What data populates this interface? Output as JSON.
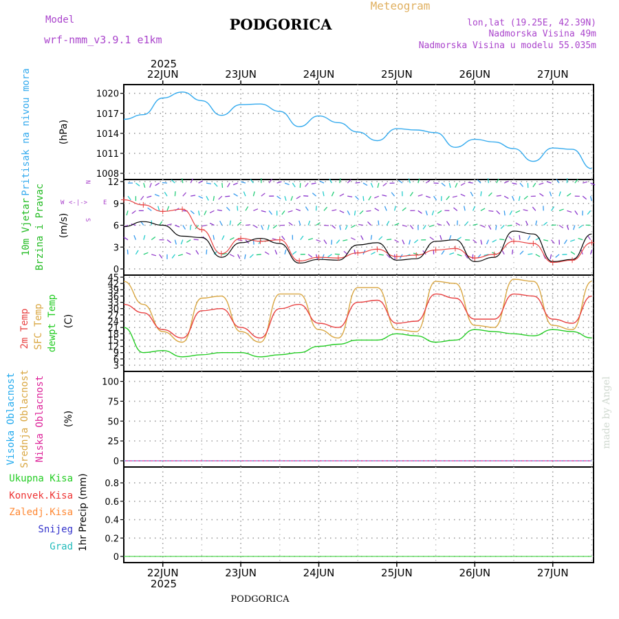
{
  "header": {
    "model_label": "Model",
    "model_name": "wrf-nmm_v3.9.1 e1km",
    "station": "PODGORICA",
    "product": "Meteogram",
    "lonlat": "lon,lat (19.25E, 42.39N)",
    "elevation": "Nadmorska Visina 49m",
    "model_elevation": "Nadmorska Visina u modelu 55.035m",
    "year": "2025",
    "credit": "made by Angel"
  },
  "colors": {
    "pressure": "#33aaee",
    "temp2m": "#e84040",
    "sfc_temp": "#d9a640",
    "dewpt": "#22cc22",
    "visoka": "#22aaee",
    "srednja": "#d9a640",
    "niska": "#dd2299",
    "wind_label": "#22bb22",
    "wind_speed": "#000000",
    "gust": "#e84040",
    "ukupna": "#22cc22",
    "konvek": "#ee3333",
    "zaledj": "#ff8833",
    "snijeg": "#3333cc",
    "grad": "#22bbbb",
    "grid": "#999999"
  },
  "x_axis": {
    "dates": [
      "22JUN",
      "23JUN",
      "24JUN",
      "25JUN",
      "26JUN",
      "27JUN"
    ],
    "bottom_year": "2025",
    "bottom_station": "PODGORICA"
  },
  "panels": {
    "pressure": {
      "title": "Pritisak na nivou mora",
      "unit": "(hPa)",
      "ticks": [
        "1020",
        "1017",
        "1014",
        "1011",
        "1008"
      ]
    },
    "wind": {
      "title1": "10m Vjetar",
      "title2": "Brzina i Pravac",
      "unit": "(m/s)",
      "ticks": [
        "12",
        "9",
        "6",
        "3",
        "0"
      ],
      "compass_w": "W",
      "compass_e": "E",
      "compass_arrow": "<-|->",
      "compass_n": "N",
      "compass_s": "S"
    },
    "temperature": {
      "title1": "2m Temp",
      "title2": "SFC Temp",
      "title3": "dewpt Temp",
      "unit": "(C)",
      "ticks": [
        "45",
        "42",
        "39",
        "36",
        "33",
        "30",
        "27",
        "24",
        "21",
        "18",
        "15",
        "12",
        "9",
        "6",
        "3"
      ]
    },
    "clouds": {
      "title1": "Visoka Oblacnost",
      "title2": "Srednja Oblacnost",
      "title3": "Niska Oblacnost",
      "unit": "(%)",
      "ticks": [
        "100",
        "75",
        "50",
        "25",
        "0"
      ]
    },
    "precip": {
      "unit": "1hr Precip (mm)",
      "ticks": [
        "0.8",
        "0.6",
        "0.4",
        "0.2",
        "0"
      ],
      "legend": [
        "Ukupna Kisa",
        "Konvek.Kisa",
        "Zaledj.Kisa",
        "Snijeg",
        "Grad"
      ]
    }
  },
  "chart_data": {
    "type": "line",
    "x": [
      "2025-06-21 12:00",
      "2025-06-21 18:00",
      "2025-06-22 00:00",
      "2025-06-22 06:00",
      "2025-06-22 12:00",
      "2025-06-22 18:00",
      "2025-06-23 00:00",
      "2025-06-23 06:00",
      "2025-06-23 12:00",
      "2025-06-23 18:00",
      "2025-06-24 00:00",
      "2025-06-24 06:00",
      "2025-06-24 12:00",
      "2025-06-24 18:00",
      "2025-06-25 00:00",
      "2025-06-25 06:00",
      "2025-06-25 12:00",
      "2025-06-25 18:00",
      "2025-06-26 00:00",
      "2025-06-26 06:00",
      "2025-06-26 12:00",
      "2025-06-26 18:00",
      "2025-06-27 00:00",
      "2025-06-27 06:00",
      "2025-06-27 12:00"
    ],
    "series": [
      {
        "key": "pressure",
        "unit": "hPa",
        "values": [
          1016.1,
          1016.8,
          1019.3,
          1020.2,
          1018.9,
          1016.7,
          1018.3,
          1018.4,
          1017.3,
          1015.0,
          1016.6,
          1015.6,
          1014.2,
          1012.9,
          1014.7,
          1014.5,
          1014.1,
          1011.9,
          1013.1,
          1012.7,
          1011.7,
          1009.8,
          1011.8,
          1011.6,
          1008.7
        ]
      },
      {
        "key": "temp2m",
        "unit": "C",
        "values": [
          32,
          28,
          20,
          16,
          29,
          30,
          21,
          16,
          30,
          32,
          23,
          21,
          33,
          34,
          23,
          24,
          37,
          35,
          25,
          25,
          37,
          36,
          25,
          23,
          36
        ]
      },
      {
        "key": "sfc_temp",
        "unit": "C",
        "values": [
          43,
          32,
          19,
          14,
          35,
          36,
          19,
          14,
          37,
          37,
          20,
          16,
          40,
          40,
          20,
          19,
          43,
          42,
          22,
          21,
          44,
          43,
          22,
          20,
          43
        ]
      },
      {
        "key": "dewpt",
        "unit": "C",
        "values": [
          21,
          9,
          10,
          7,
          8,
          9,
          9,
          7,
          8,
          9,
          12,
          13,
          15,
          15,
          18,
          17,
          14,
          15,
          20,
          19,
          18,
          17,
          20,
          19,
          16
        ]
      },
      {
        "key": "wind_speed",
        "unit": "m/s",
        "values": [
          5.8,
          6.5,
          6.0,
          4.5,
          4.3,
          1.6,
          3.6,
          4.2,
          3.5,
          0.8,
          1.3,
          1.2,
          3.3,
          3.6,
          1.2,
          1.4,
          3.8,
          4.0,
          1.0,
          1.6,
          5.2,
          4.8,
          1.0,
          1.3,
          4.8
        ]
      },
      {
        "key": "gust",
        "unit": "m/s",
        "values": [
          9.5,
          8.8,
          7.9,
          8.2,
          5.4,
          2.1,
          4.2,
          3.8,
          4.0,
          1.1,
          1.6,
          1.5,
          2.2,
          2.7,
          1.7,
          1.9,
          2.6,
          2.8,
          1.5,
          2.0,
          3.8,
          3.5,
          0.9,
          1.2,
          3.6
        ]
      },
      {
        "key": "visoka",
        "unit": "%",
        "values": [
          0,
          0,
          0,
          0,
          0,
          0,
          0,
          0,
          0,
          0,
          0,
          0,
          0,
          0,
          0,
          0,
          0,
          0,
          0,
          0,
          0,
          0,
          0,
          0,
          0
        ]
      },
      {
        "key": "srednja",
        "unit": "%",
        "values": [
          0,
          0,
          0,
          0,
          0,
          0,
          0,
          0,
          0,
          0,
          0,
          0,
          0,
          0,
          0,
          0,
          0,
          0,
          0,
          0,
          0,
          0,
          0,
          0,
          0
        ]
      },
      {
        "key": "niska",
        "unit": "%",
        "values": [
          0,
          0,
          0,
          0,
          0,
          0,
          0,
          0,
          0,
          0,
          0,
          0,
          0,
          0,
          0,
          0,
          0,
          0,
          0,
          0,
          0,
          0,
          0,
          0,
          0
        ]
      },
      {
        "key": "ukupna",
        "unit": "mm",
        "values": [
          0,
          0,
          0,
          0,
          0,
          0,
          0,
          0,
          0,
          0,
          0,
          0,
          0,
          0,
          0,
          0,
          0,
          0,
          0,
          0,
          0,
          0,
          0,
          0,
          0
        ]
      }
    ],
    "ylim": {
      "pressure": [
        1008,
        1021
      ],
      "wind": [
        0,
        12
      ],
      "temperature": [
        3,
        45
      ],
      "clouds": [
        0,
        110
      ],
      "precip": [
        0,
        0.95
      ]
    },
    "grid": true
  }
}
